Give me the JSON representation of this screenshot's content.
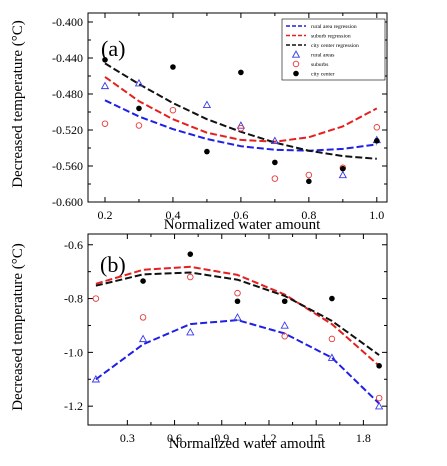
{
  "chart_data": [
    {
      "type": "scatter",
      "panel_label": "(a)",
      "xlabel": "Normalized water amount",
      "ylabel": "Decreased temperature (°C)",
      "xlim": [
        0.15,
        1.03
      ],
      "ylim": [
        -0.6,
        -0.39
      ],
      "xticks": [
        0.2,
        0.4,
        0.6,
        0.8,
        1.0
      ],
      "xtick_labels": [
        "0.2",
        "0.4",
        "0.6",
        "0.8",
        "1.0"
      ],
      "yticks": [
        -0.4,
        -0.44,
        -0.48,
        -0.52,
        -0.56,
        -0.6
      ],
      "ytick_labels": [
        "-0.400",
        "-0.440",
        "-0.480",
        "-0.520",
        "-0.560",
        "-0.600"
      ],
      "legend_position": "top-right",
      "legend": [
        {
          "label": "rural area regression",
          "kind": "line",
          "color": "#1f1fe6"
        },
        {
          "label": "suburb regression",
          "kind": "line",
          "color": "#e61f1f"
        },
        {
          "label": "city center regression",
          "kind": "line",
          "color": "#111111"
        },
        {
          "label": "rural areas",
          "kind": "triangle",
          "color": "#3a3ae8"
        },
        {
          "label": "suburbs",
          "kind": "circle-open",
          "color": "#e83a3a"
        },
        {
          "label": "city center",
          "kind": "circle-filled",
          "color": "#000000"
        }
      ],
      "series": [
        {
          "name": "rural area regression",
          "kind": "line",
          "color": "#1f1fe6",
          "x": [
            0.2,
            0.3,
            0.4,
            0.5,
            0.6,
            0.7,
            0.8,
            0.9,
            1.0
          ],
          "y": [
            -0.487,
            -0.505,
            -0.519,
            -0.53,
            -0.538,
            -0.542,
            -0.543,
            -0.541,
            -0.536
          ]
        },
        {
          "name": "suburb regression",
          "kind": "line",
          "color": "#e61f1f",
          "x": [
            0.2,
            0.3,
            0.4,
            0.5,
            0.6,
            0.7,
            0.8,
            0.9,
            1.0
          ],
          "y": [
            -0.461,
            -0.488,
            -0.508,
            -0.523,
            -0.531,
            -0.533,
            -0.528,
            -0.516,
            -0.496
          ]
        },
        {
          "name": "city center regression",
          "kind": "line",
          "color": "#111111",
          "x": [
            0.2,
            0.3,
            0.4,
            0.5,
            0.6,
            0.7,
            0.8,
            0.9,
            1.0
          ],
          "y": [
            -0.446,
            -0.469,
            -0.49,
            -0.508,
            -0.522,
            -0.534,
            -0.543,
            -0.549,
            -0.552
          ]
        },
        {
          "name": "rural areas",
          "kind": "triangle",
          "color": "#3a3ae8",
          "x": [
            0.2,
            0.3,
            0.5,
            0.6,
            0.7,
            0.9,
            1.0
          ],
          "y": [
            -0.471,
            -0.468,
            -0.492,
            -0.515,
            -0.532,
            -0.57,
            -0.531
          ]
        },
        {
          "name": "suburbs",
          "kind": "circle-open",
          "color": "#e83a3a",
          "x": [
            0.2,
            0.3,
            0.4,
            0.6,
            0.7,
            0.8,
            0.9,
            1.0
          ],
          "y": [
            -0.513,
            -0.515,
            -0.498,
            -0.518,
            -0.574,
            -0.57,
            -0.562,
            -0.517
          ]
        },
        {
          "name": "city center",
          "kind": "circle-filled",
          "color": "#000000",
          "x": [
            0.2,
            0.3,
            0.4,
            0.5,
            0.6,
            0.7,
            0.8,
            0.9,
            1.0
          ],
          "y": [
            -0.442,
            -0.496,
            -0.45,
            -0.544,
            -0.456,
            -0.556,
            -0.577,
            -0.563,
            -0.532
          ]
        }
      ]
    },
    {
      "type": "scatter",
      "panel_label": "(b)",
      "xlabel": "Normalized water amount",
      "ylabel": "Decreased temperature (°C)",
      "xlim": [
        0.05,
        1.95
      ],
      "ylim": [
        -1.27,
        -0.56
      ],
      "xticks": [
        0.3,
        0.6,
        0.9,
        1.2,
        1.5,
        1.8
      ],
      "xtick_labels": [
        "0.3",
        "0.6",
        "0.9",
        "1.2",
        "1.5",
        "1.8"
      ],
      "yticks": [
        -0.6,
        -0.8,
        -1.0,
        -1.2
      ],
      "ytick_labels": [
        "-0.6",
        "-0.8",
        "-1.0",
        "-1.2"
      ],
      "series": [
        {
          "name": "rural area regression",
          "kind": "line",
          "color": "#1f1fe6",
          "x": [
            0.1,
            0.4,
            0.7,
            1.0,
            1.3,
            1.6,
            1.9
          ],
          "y": [
            -1.1,
            -0.97,
            -0.895,
            -0.88,
            -0.93,
            -1.02,
            -1.19
          ]
        },
        {
          "name": "suburb regression",
          "kind": "line",
          "color": "#e61f1f",
          "x": [
            0.1,
            0.4,
            0.7,
            1.0,
            1.3,
            1.6,
            1.9
          ],
          "y": [
            -0.745,
            -0.693,
            -0.682,
            -0.712,
            -0.785,
            -0.895,
            -1.05
          ]
        },
        {
          "name": "city center regression",
          "kind": "line",
          "color": "#111111",
          "x": [
            0.1,
            0.4,
            0.7,
            1.0,
            1.3,
            1.6,
            1.9
          ],
          "y": [
            -0.752,
            -0.71,
            -0.703,
            -0.73,
            -0.79,
            -0.883,
            -1.01
          ]
        },
        {
          "name": "rural areas",
          "kind": "triangle",
          "color": "#3a3ae8",
          "x": [
            0.1,
            0.4,
            0.7,
            1.0,
            1.3,
            1.6,
            1.9
          ],
          "y": [
            -1.1,
            -0.95,
            -0.925,
            -0.87,
            -0.9,
            -1.02,
            -1.2
          ]
        },
        {
          "name": "suburbs",
          "kind": "circle-open",
          "color": "#e83a3a",
          "x": [
            0.1,
            0.4,
            0.7,
            1.0,
            1.3,
            1.6,
            1.9
          ],
          "y": [
            -0.8,
            -0.87,
            -0.72,
            -0.78,
            -0.94,
            -0.95,
            -1.17
          ]
        },
        {
          "name": "city center",
          "kind": "circle-filled",
          "color": "#000000",
          "x": [
            0.4,
            0.7,
            1.0,
            1.3,
            1.6,
            1.9
          ],
          "y": [
            -0.735,
            -0.635,
            -0.81,
            -0.81,
            -0.8,
            -1.05
          ]
        }
      ]
    }
  ]
}
